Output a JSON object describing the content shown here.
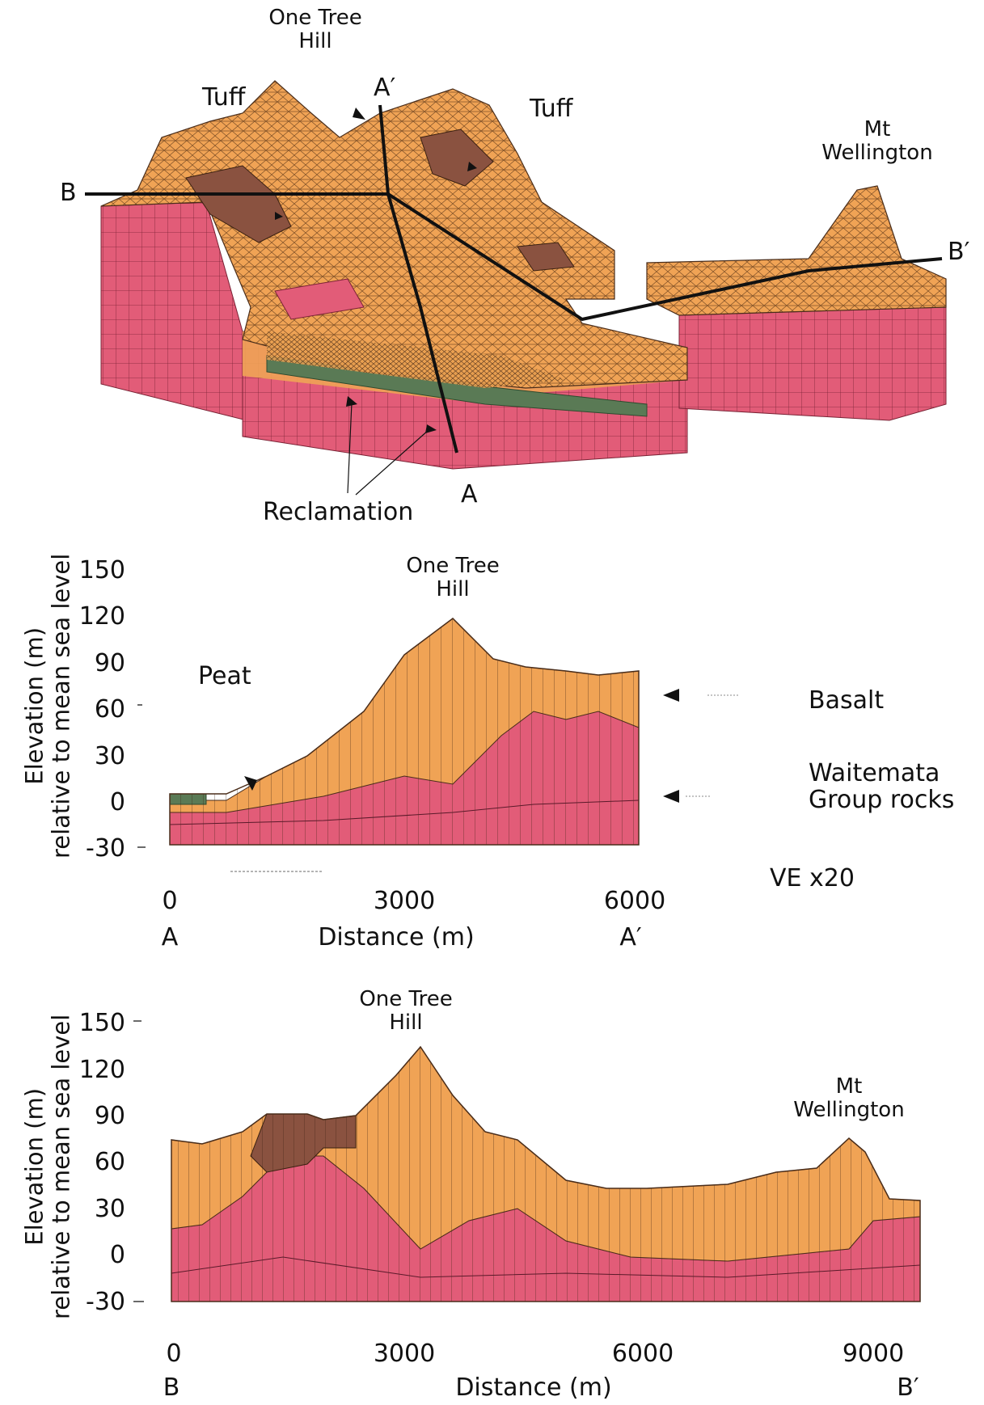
{
  "colors": {
    "basalt": "#f0a355",
    "waitemata": "#e25c78",
    "tuff": "#8a5240",
    "reclamation": "#5a7a55",
    "mesh": "#4a2d1a",
    "line": "#111111"
  },
  "block": {
    "labels": {
      "one_tree_hill": [
        "One Tree",
        "Hill"
      ],
      "tuff_left": "Tuff",
      "tuff_right": "Tuff",
      "mt_wellington": [
        "Mt",
        "Wellington"
      ],
      "a": "A",
      "a_prime": "A′",
      "b": "B",
      "b_prime": "B′",
      "reclamation": "Reclamation"
    }
  },
  "section_a": {
    "ylabel": [
      "Elevation (m)",
      "relative to mean sea level"
    ],
    "yticks": [
      "150",
      "120",
      "90",
      "60",
      "30",
      "0",
      "-30"
    ],
    "xticks": [
      "0",
      "3000",
      "6000"
    ],
    "xend_left": "A",
    "xend_right": "A′",
    "xlabel": "Distance (m)",
    "peak_label": [
      "One Tree",
      "Hill"
    ],
    "peat_label": "Peat",
    "basalt_label": "Basalt",
    "waitemata_label": [
      "Waitemata",
      "Group rocks"
    ],
    "ve_label": "VE x20"
  },
  "section_b": {
    "ylabel": [
      "Elevation (m)",
      "relative to mean sea level"
    ],
    "yticks": [
      "150",
      "120",
      "90",
      "60",
      "30",
      "0",
      "-30"
    ],
    "xticks": [
      "0",
      "3000",
      "6000",
      "9000"
    ],
    "xend_left": "B",
    "xend_right": "B′",
    "xlabel": "Distance (m)",
    "peak1_label": [
      "One Tree",
      "Hill"
    ],
    "peak2_label": [
      "Mt",
      "Wellington"
    ]
  }
}
